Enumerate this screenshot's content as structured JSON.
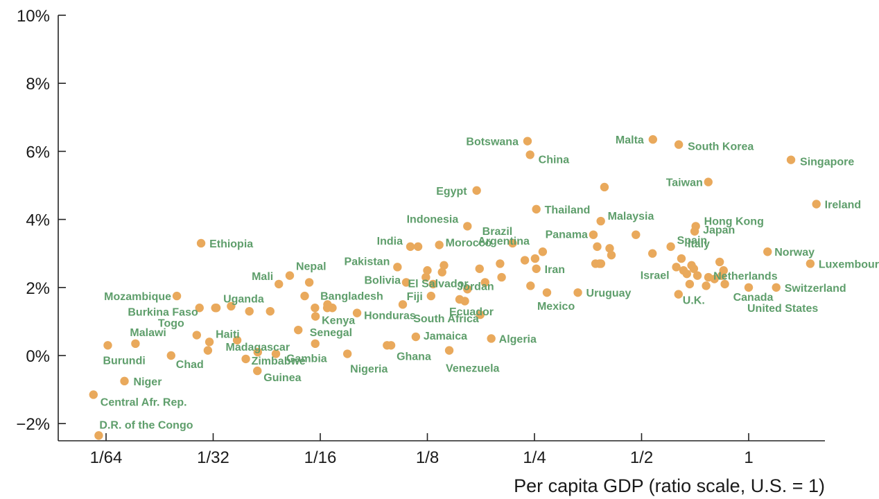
{
  "chart_data": {
    "type": "scatter",
    "title": "",
    "xlabel": "Per capita GDP (ratio scale, U.S. = 1)",
    "ylabel": "",
    "x_scale": "log2",
    "xlim": [
      0.0137,
      2.0
    ],
    "ylim": [
      -2.5,
      10
    ],
    "grid": false,
    "x_ticks": [
      {
        "value": 0.015625,
        "label": "1/64"
      },
      {
        "value": 0.03125,
        "label": "1/32"
      },
      {
        "value": 0.0625,
        "label": "1/16"
      },
      {
        "value": 0.125,
        "label": "1/8"
      },
      {
        "value": 0.25,
        "label": "1/4"
      },
      {
        "value": 0.5,
        "label": "1/2"
      },
      {
        "value": 1,
        "label": "1"
      }
    ],
    "y_ticks": [
      {
        "value": -2,
        "label": "−2%"
      },
      {
        "value": 0,
        "label": "0%"
      },
      {
        "value": 2,
        "label": "2%"
      },
      {
        "value": 4,
        "label": "4%"
      },
      {
        "value": 6,
        "label": "6%"
      },
      {
        "value": 8,
        "label": "8%"
      },
      {
        "value": 10,
        "label": "10%"
      }
    ],
    "marker_color": "#e9a95c",
    "label_color": "#5e9e6b",
    "labeled_points": [
      {
        "label": "Botswana",
        "x": 0.239,
        "y": 6.3
      },
      {
        "label": "China",
        "x": 0.243,
        "y": 5.9
      },
      {
        "label": "Malta",
        "x": 0.538,
        "y": 6.35
      },
      {
        "label": "South Korea",
        "x": 0.636,
        "y": 6.2
      },
      {
        "label": "Singapore",
        "x": 1.315,
        "y": 5.75
      },
      {
        "label": "Taiwan",
        "x": 0.77,
        "y": 5.1
      },
      {
        "label": "Egypt",
        "x": 0.172,
        "y": 4.85
      },
      {
        "label": "Thailand",
        "x": 0.253,
        "y": 4.3
      },
      {
        "label": "Ireland",
        "x": 1.55,
        "y": 4.45
      },
      {
        "label": "Indonesia",
        "x": 0.162,
        "y": 3.8
      },
      {
        "label": "Malaysia",
        "x": 0.384,
        "y": 3.95
      },
      {
        "label": "Hong Kong",
        "x": 0.71,
        "y": 3.8
      },
      {
        "label": "Japan",
        "x": 0.705,
        "y": 3.65
      },
      {
        "label": "Brazil",
        "x": 0.217,
        "y": 3.3
      },
      {
        "label": "Panama",
        "x": 0.366,
        "y": 3.55
      },
      {
        "label": "Spain",
        "x": 0.604,
        "y": 3.2
      },
      {
        "label": "India",
        "x": 0.112,
        "y": 3.2
      },
      {
        "label": "Morocco",
        "x": 0.135,
        "y": 3.25
      },
      {
        "label": "Ethiopia",
        "x": 0.0289,
        "y": 3.3
      },
      {
        "label": "Argentina",
        "x": 0.251,
        "y": 2.85
      },
      {
        "label": "Italy",
        "x": 0.647,
        "y": 2.85
      },
      {
        "label": "Norway",
        "x": 1.13,
        "y": 3.05
      },
      {
        "label": "Pakistan",
        "x": 0.103,
        "y": 2.6
      },
      {
        "label": "Iran",
        "x": 0.253,
        "y": 2.55
      },
      {
        "label": "Luxembourg",
        "x": 1.49,
        "y": 2.7
      },
      {
        "label": "Nepal",
        "x": 0.0513,
        "y": 2.35
      },
      {
        "label": "El Salvador",
        "x": 0.125,
        "y": 2.5
      },
      {
        "label": "Israel",
        "x": 0.626,
        "y": 2.6
      },
      {
        "label": "Netherlands",
        "x": 0.84,
        "y": 2.35
      },
      {
        "label": "Mali",
        "x": 0.0478,
        "y": 2.1
      },
      {
        "label": "Bolivia",
        "x": 0.109,
        "y": 2.15
      },
      {
        "label": "Switzerland",
        "x": 1.195,
        "y": 2.0
      },
      {
        "label": "Jordan",
        "x": 0.162,
        "y": 1.95
      },
      {
        "label": "Uruguay",
        "x": 0.331,
        "y": 1.85
      },
      {
        "label": "Mozambique",
        "x": 0.0247,
        "y": 1.75
      },
      {
        "label": "Fiji",
        "x": 0.128,
        "y": 1.75
      },
      {
        "label": "Uganda",
        "x": 0.0319,
        "y": 1.4
      },
      {
        "label": "Bangladesh",
        "x": 0.0654,
        "y": 1.4
      },
      {
        "label": "U.K.",
        "x": 0.635,
        "y": 1.8
      },
      {
        "label": "Canada",
        "x": 0.857,
        "y": 2.1
      },
      {
        "label": "Mexico",
        "x": 0.271,
        "y": 1.85
      },
      {
        "label": "Ecuador",
        "x": 0.154,
        "y": 1.65
      },
      {
        "label": "Burkina Faso",
        "x": 0.0286,
        "y": 1.4
      },
      {
        "label": "United States",
        "x": 1.0,
        "y": 2.0
      },
      {
        "label": "Honduras",
        "x": 0.0793,
        "y": 1.25
      },
      {
        "label": "Kenya",
        "x": 0.0606,
        "y": 1.15
      },
      {
        "label": "South Africa",
        "x": 0.176,
        "y": 1.2
      },
      {
        "label": "Togo",
        "x": 0.0281,
        "y": 0.6
      },
      {
        "label": "Haiti",
        "x": 0.0305,
        "y": 0.4
      },
      {
        "label": "Malawi",
        "x": 0.0189,
        "y": 0.35
      },
      {
        "label": "Jamaica",
        "x": 0.116,
        "y": 0.55
      },
      {
        "label": "Algeria",
        "x": 0.189,
        "y": 0.5
      },
      {
        "label": "Senegal",
        "x": 0.0605,
        "y": 0.35
      },
      {
        "label": "Burundi",
        "x": 0.0158,
        "y": 0.3
      },
      {
        "label": "Madagascar",
        "x": 0.0417,
        "y": 0.1
      },
      {
        "label": "Ghana",
        "x": 0.0988,
        "y": 0.3
      },
      {
        "label": "Gambia",
        "x": 0.0469,
        "y": 0.05
      },
      {
        "label": "Zimbabwe",
        "x": 0.0386,
        "y": -0.1
      },
      {
        "label": "Chad",
        "x": 0.0238,
        "y": 0.0
      },
      {
        "label": "Venezuela",
        "x": 0.144,
        "y": 0.15
      },
      {
        "label": "Nigeria",
        "x": 0.0745,
        "y": 0.05
      },
      {
        "label": "Guinea",
        "x": 0.0416,
        "y": -0.45
      },
      {
        "label": "Niger",
        "x": 0.0176,
        "y": -0.75
      },
      {
        "label": "Central Afr. Rep.",
        "x": 0.0144,
        "y": -1.15
      },
      {
        "label": "D.R. of the Congo",
        "x": 0.0149,
        "y": -2.35
      }
    ],
    "unlabeled_points": [
      {
        "x": 0.0317,
        "y": 1.4
      },
      {
        "x": 0.0351,
        "y": 1.45
      },
      {
        "x": 0.0395,
        "y": 1.3
      },
      {
        "x": 0.0452,
        "y": 1.3
      },
      {
        "x": 0.0565,
        "y": 1.75
      },
      {
        "x": 0.0604,
        "y": 1.4
      },
      {
        "x": 0.0655,
        "y": 1.5
      },
      {
        "x": 0.0676,
        "y": 1.4
      },
      {
        "x": 0.0582,
        "y": 2.15
      },
      {
        "x": 0.0365,
        "y": 0.45
      },
      {
        "x": 0.0302,
        "y": 0.15
      },
      {
        "x": 0.0542,
        "y": 0.75
      },
      {
        "x": 0.0963,
        "y": 0.3
      },
      {
        "x": 0.1066,
        "y": 1.5
      },
      {
        "x": 0.1177,
        "y": 3.2
      },
      {
        "x": 0.1238,
        "y": 2.3
      },
      {
        "x": 0.1297,
        "y": 2.1
      },
      {
        "x": 0.1375,
        "y": 2.45
      },
      {
        "x": 0.1392,
        "y": 2.65
      },
      {
        "x": 0.1593,
        "y": 1.6
      },
      {
        "x": 0.1752,
        "y": 2.55
      },
      {
        "x": 0.1816,
        "y": 2.15
      },
      {
        "x": 0.2021,
        "y": 2.3
      },
      {
        "x": 0.2001,
        "y": 2.7
      },
      {
        "x": 0.2349,
        "y": 2.8
      },
      {
        "x": 0.2437,
        "y": 2.05
      },
      {
        "x": 0.2637,
        "y": 3.05
      },
      {
        "x": 0.3711,
        "y": 2.7
      },
      {
        "x": 0.3752,
        "y": 3.2
      },
      {
        "x": 0.3808,
        "y": 2.7
      },
      {
        "x": 0.3844,
        "y": 2.7
      },
      {
        "x": 0.4067,
        "y": 3.15
      },
      {
        "x": 0.4113,
        "y": 2.95
      },
      {
        "x": 0.3932,
        "y": 4.95
      },
      {
        "x": 0.4819,
        "y": 3.55
      },
      {
        "x": 0.5365,
        "y": 3.0
      },
      {
        "x": 0.6559,
        "y": 2.5
      },
      {
        "x": 0.6702,
        "y": 2.4
      },
      {
        "x": 0.6826,
        "y": 2.1
      },
      {
        "x": 0.6909,
        "y": 2.65
      },
      {
        "x": 0.7011,
        "y": 2.55
      },
      {
        "x": 0.7176,
        "y": 2.35
      },
      {
        "x": 0.7592,
        "y": 2.05
      },
      {
        "x": 0.7707,
        "y": 2.3
      },
      {
        "x": 0.8013,
        "y": 2.25
      },
      {
        "x": 0.8289,
        "y": 2.75
      },
      {
        "x": 0.8499,
        "y": 2.5
      }
    ]
  }
}
